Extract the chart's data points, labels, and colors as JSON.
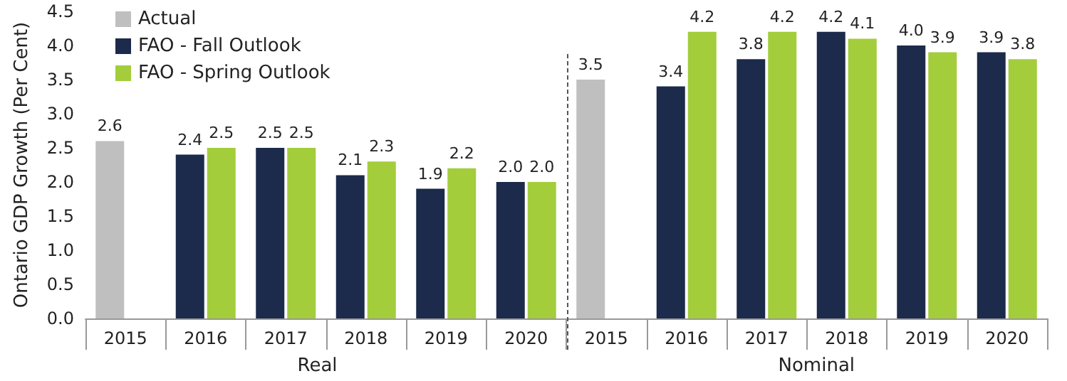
{
  "chart_data": {
    "type": "bar",
    "ylabel": "Ontario GDP Growth (Per Cent)",
    "categories": [
      "2015",
      "2016",
      "2017",
      "2018",
      "2019",
      "2020",
      "2015",
      "2016",
      "2017",
      "2018",
      "2019",
      "2020"
    ],
    "series": [
      {
        "name": "Actual",
        "color": "#bfbfbf",
        "values": [
          2.6,
          null,
          null,
          null,
          null,
          null,
          3.5,
          null,
          null,
          null,
          null,
          null
        ],
        "value_labels": [
          "2.6",
          null,
          null,
          null,
          null,
          null,
          "3.5",
          null,
          null,
          null,
          null,
          null
        ]
      },
      {
        "name": "FAO - Fall Outlook",
        "color": "#1c2a4b",
        "values": [
          null,
          2.4,
          2.5,
          2.1,
          1.9,
          2.0,
          null,
          3.4,
          3.8,
          4.2,
          4.0,
          3.9
        ],
        "value_labels": [
          null,
          "2.4",
          "2.5",
          "2.1",
          "1.9",
          "2.0",
          null,
          "3.4",
          "3.8",
          "4.2",
          "4.0",
          "3.9"
        ]
      },
      {
        "name": "FAO - Spring Outlook",
        "color": "#a3cd3b",
        "values": [
          null,
          2.5,
          2.5,
          2.3,
          2.2,
          2.0,
          null,
          4.2,
          4.2,
          4.1,
          3.9,
          3.8
        ],
        "value_labels": [
          null,
          "2.5",
          "2.5",
          "2.3",
          "2.2",
          "2.0",
          null,
          "4.2",
          "4.2",
          "4.1",
          "3.9",
          "3.8"
        ]
      }
    ],
    "ylim": [
      0,
      4.5
    ],
    "yticks": [
      {
        "value": 0,
        "label": "0.0"
      },
      {
        "value": 0.5,
        "label": "0.5"
      },
      {
        "value": 1,
        "label": "1.0"
      },
      {
        "value": 1.5,
        "label": "1.5"
      },
      {
        "value": 2,
        "label": "2.0"
      },
      {
        "value": 2.5,
        "label": "2.5"
      },
      {
        "value": 3,
        "label": "3.0"
      },
      {
        "value": 3.5,
        "label": "3.5"
      },
      {
        "value": 4,
        "label": "4.0"
      },
      {
        "value": 4.5,
        "label": "4.5"
      }
    ],
    "annotations": [
      "Real",
      "Nominal"
    ],
    "grid": false,
    "legend": "top left"
  }
}
